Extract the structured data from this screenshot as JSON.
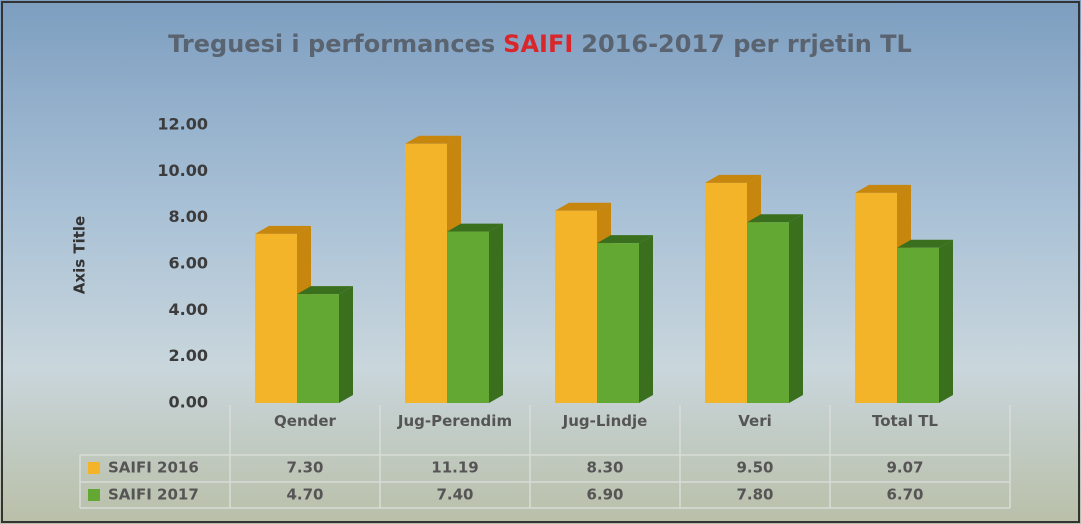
{
  "chart_data": {
    "type": "bar3d",
    "title_start": "Treguesi i performances",
    "title_highlight": "SAIFI",
    "title_end": "2016-2017 per rrjetin TL",
    "y_axis_title": "Axis Title",
    "categories": [
      "Qender",
      "Jug-Perendim",
      "Jug-Lindje",
      "Veri",
      "Total TL"
    ],
    "series": [
      {
        "name": "SAIFI 2016",
        "color": "#f4b42a",
        "side_color": "#c7860e",
        "values": [
          7.3,
          11.19,
          8.3,
          9.5,
          9.07
        ],
        "value_labels": [
          "7.30",
          "11.19",
          "8.30",
          "9.50",
          "9.07"
        ]
      },
      {
        "name": "SAIFI 2017",
        "color": "#62a832",
        "side_color": "#3a6f1d",
        "values": [
          4.7,
          7.4,
          6.9,
          7.8,
          6.7
        ],
        "value_labels": [
          "4.70",
          "7.40",
          "6.90",
          "7.80",
          "6.70"
        ]
      }
    ],
    "ylim": [
      0,
      12
    ],
    "yticks": [
      {
        "value": 0,
        "label": "0.00"
      },
      {
        "value": 2,
        "label": "2.00"
      },
      {
        "value": 4,
        "label": "4.00"
      },
      {
        "value": 6,
        "label": "6.00"
      },
      {
        "value": 8,
        "label": "8.00"
      },
      {
        "value": 10,
        "label": "10.00"
      },
      {
        "value": 12,
        "label": "12.00"
      }
    ],
    "highlight_color": "#d9262b"
  }
}
